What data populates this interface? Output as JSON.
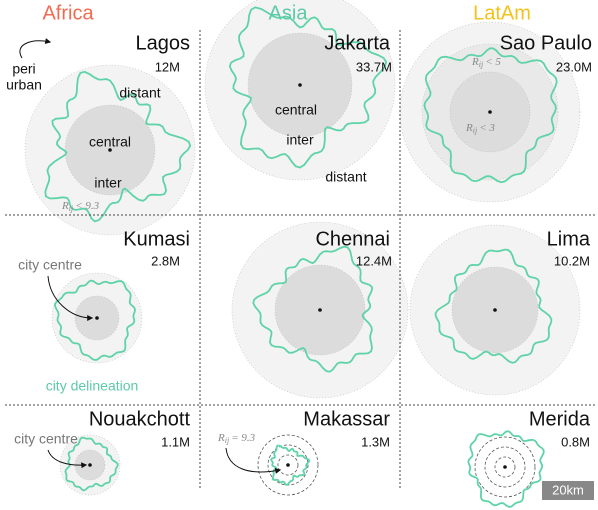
{
  "columns": [
    "Africa",
    "Asia",
    "LatAm"
  ],
  "cities": [
    {
      "name": "Lagos",
      "population": "12M"
    },
    {
      "name": "Jakarta",
      "population": "33.7M"
    },
    {
      "name": "Sao Paulo",
      "population": "23.0M"
    },
    {
      "name": "Kumasi",
      "population": "2.8M"
    },
    {
      "name": "Chennai",
      "population": "12.4M"
    },
    {
      "name": "Lima",
      "population": "10.2M"
    },
    {
      "name": "Nouakchott",
      "population": "1.1M"
    },
    {
      "name": "Makassar",
      "population": "1.3M"
    },
    {
      "name": "Merida",
      "population": "0.8M"
    }
  ],
  "annotations": {
    "lagos": {
      "peri": "peri",
      "urban": "urban",
      "distant": "distant",
      "central": "central",
      "inter": "inter",
      "radius": {
        "symbol": "R",
        "subscript": "ij",
        "relation": "< 9.3"
      }
    },
    "jakarta": {
      "central": "central",
      "inter": "inter",
      "distant": "distant"
    },
    "sao_paulo": {
      "outer": {
        "symbol": "R",
        "subscript": "ij",
        "relation": "< 5"
      },
      "inner": {
        "symbol": "R",
        "subscript": "ij",
        "relation": "< 3"
      }
    },
    "kumasi": {
      "centre": "city centre",
      "delineation": "city delineation"
    },
    "nouakchott": {
      "centre": "city centre"
    },
    "makassar": {
      "radius": {
        "symbol": "R",
        "subscript": "ij",
        "relation": "= 9.3"
      }
    },
    "scale": "20km"
  }
}
